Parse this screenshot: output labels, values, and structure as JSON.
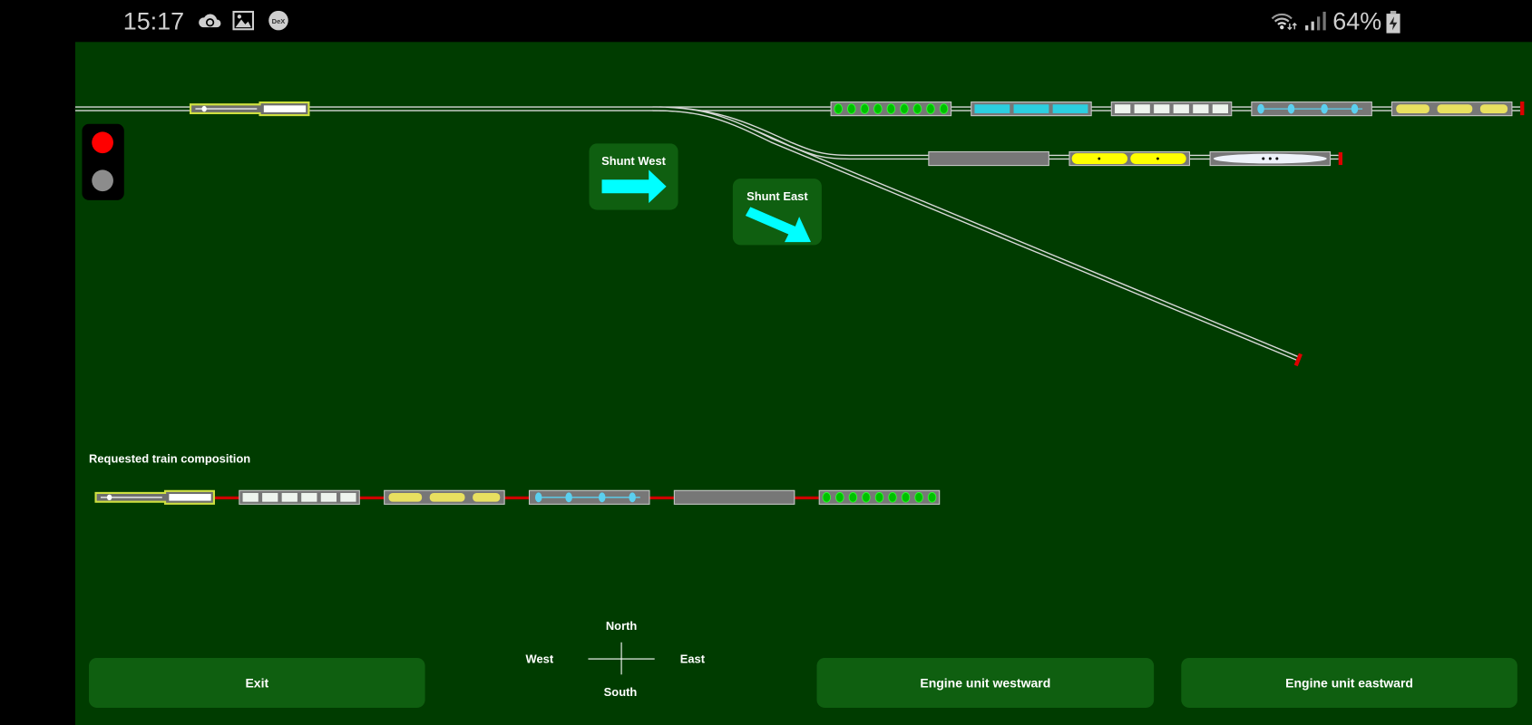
{
  "status_bar": {
    "time": "15:17",
    "left_icons": [
      "cloud-sync-icon",
      "gallery-icon",
      "dex-icon"
    ],
    "dex_label": "DeX",
    "right_icons": [
      "wifi-icon",
      "signal-icon",
      "battery-charging-icon"
    ],
    "battery": "64%"
  },
  "colors": {
    "background": "#003c00",
    "button": "#0f5f10",
    "arrow": "#00ffff",
    "stop": "#dd0000",
    "signal_red": "#ff0000",
    "signal_off": "#8c8c8c"
  },
  "signal": {
    "state": "red"
  },
  "shunt_west": {
    "label": "Shunt West",
    "icon": "arrow-right-icon"
  },
  "shunt_east": {
    "label": "Shunt East",
    "icon": "arrow-down-right-icon"
  },
  "yard": {
    "main_track": {
      "locomotive": "locomotive",
      "wagons": [
        "green-dots",
        "cyan-blocks",
        "white-squares",
        "cyan-dots-line",
        "yellow-blobs"
      ]
    },
    "siding_1": {
      "wagons": [
        "grey",
        "yellow-pills",
        "white-capsule"
      ]
    },
    "siding_2": {
      "wagons": []
    }
  },
  "composition": {
    "title": "Requested train composition",
    "units": [
      "locomotive",
      "white-squares",
      "yellow-blobs",
      "cyan-dots-line",
      "grey",
      "green-dots"
    ]
  },
  "compass": {
    "north": "North",
    "west": "West",
    "east": "East",
    "south": "South"
  },
  "buttons": {
    "exit": "Exit",
    "engine_westward": "Engine unit westward",
    "engine_eastward": "Engine unit eastward"
  }
}
